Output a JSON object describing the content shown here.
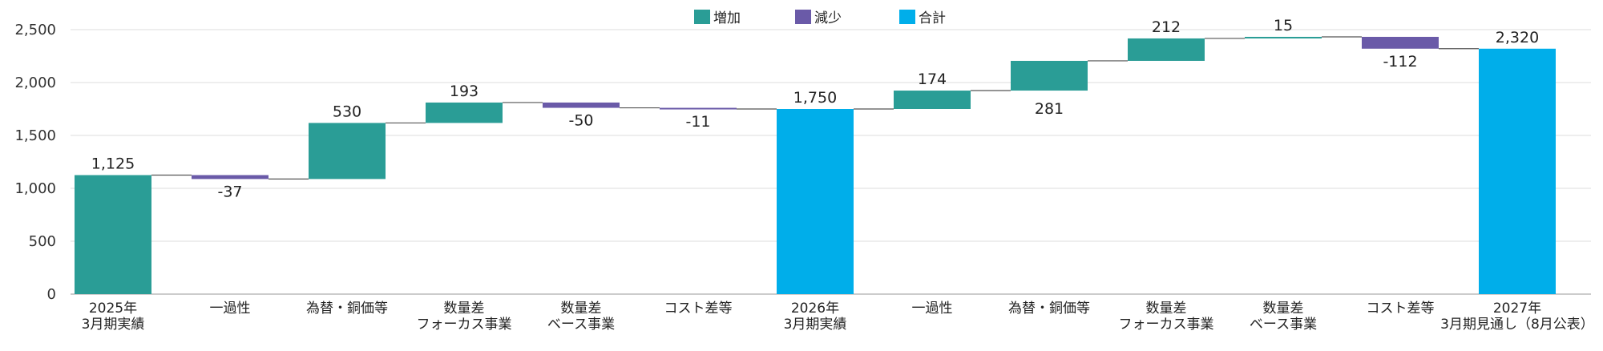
{
  "chart_data": {
    "type": "waterfall",
    "legend": [
      {
        "key": "increase",
        "label": "増加",
        "color": "#2a9d96"
      },
      {
        "key": "decrease",
        "label": "減少",
        "color": "#6a5aa8"
      },
      {
        "key": "total",
        "label": "合計",
        "color": "#00aeea"
      }
    ],
    "legend_position": "top-center",
    "ylim": [
      0,
      2500
    ],
    "yticks": [
      0,
      500,
      1000,
      1500,
      2000,
      2500
    ],
    "ytick_labels": [
      "0",
      "500",
      "1,000",
      "1,500",
      "2,000",
      "2,500"
    ],
    "grid": true,
    "items": [
      {
        "label": [
          "2025年",
          "3月期実績"
        ],
        "kind": "total",
        "value": 1125,
        "value_label": "1,125"
      },
      {
        "label": [
          "一過性"
        ],
        "kind": "decrease",
        "value": -37,
        "value_label": "-37"
      },
      {
        "label": [
          "為替・銅価等"
        ],
        "kind": "increase",
        "value": 530,
        "value_label": "530"
      },
      {
        "label": [
          "数量差",
          "フォーカス事業"
        ],
        "kind": "increase",
        "value": 193,
        "value_label": "193"
      },
      {
        "label": [
          "数量差",
          "ベース事業"
        ],
        "kind": "decrease",
        "value": -50,
        "value_label": "-50"
      },
      {
        "label": [
          "コスト差等"
        ],
        "kind": "decrease",
        "value": -11,
        "value_label": "-11"
      },
      {
        "label": [
          "2026年",
          "3月期実績"
        ],
        "kind": "total",
        "value": 1750,
        "value_label": "1,750"
      },
      {
        "label": [
          "一過性"
        ],
        "kind": "increase",
        "value": 174,
        "value_label": "174"
      },
      {
        "label": [
          "為替・銅価等"
        ],
        "kind": "increase",
        "value": 281,
        "value_label": "281"
      },
      {
        "label": [
          "数量差",
          "フォーカス事業"
        ],
        "kind": "increase",
        "value": 212,
        "value_label": "212"
      },
      {
        "label": [
          "数量差",
          "ベース事業"
        ],
        "kind": "increase",
        "value": 15,
        "value_label": "15"
      },
      {
        "label": [
          "コスト差等"
        ],
        "kind": "decrease",
        "value": -112,
        "value_label": "-112"
      },
      {
        "label": [
          "2027年",
          "3月期見通し（8月公表）"
        ],
        "kind": "total",
        "value": 2320,
        "value_label": "2,320",
        "color": "#00aeea"
      }
    ],
    "first_total_color": "#2a9d96"
  }
}
